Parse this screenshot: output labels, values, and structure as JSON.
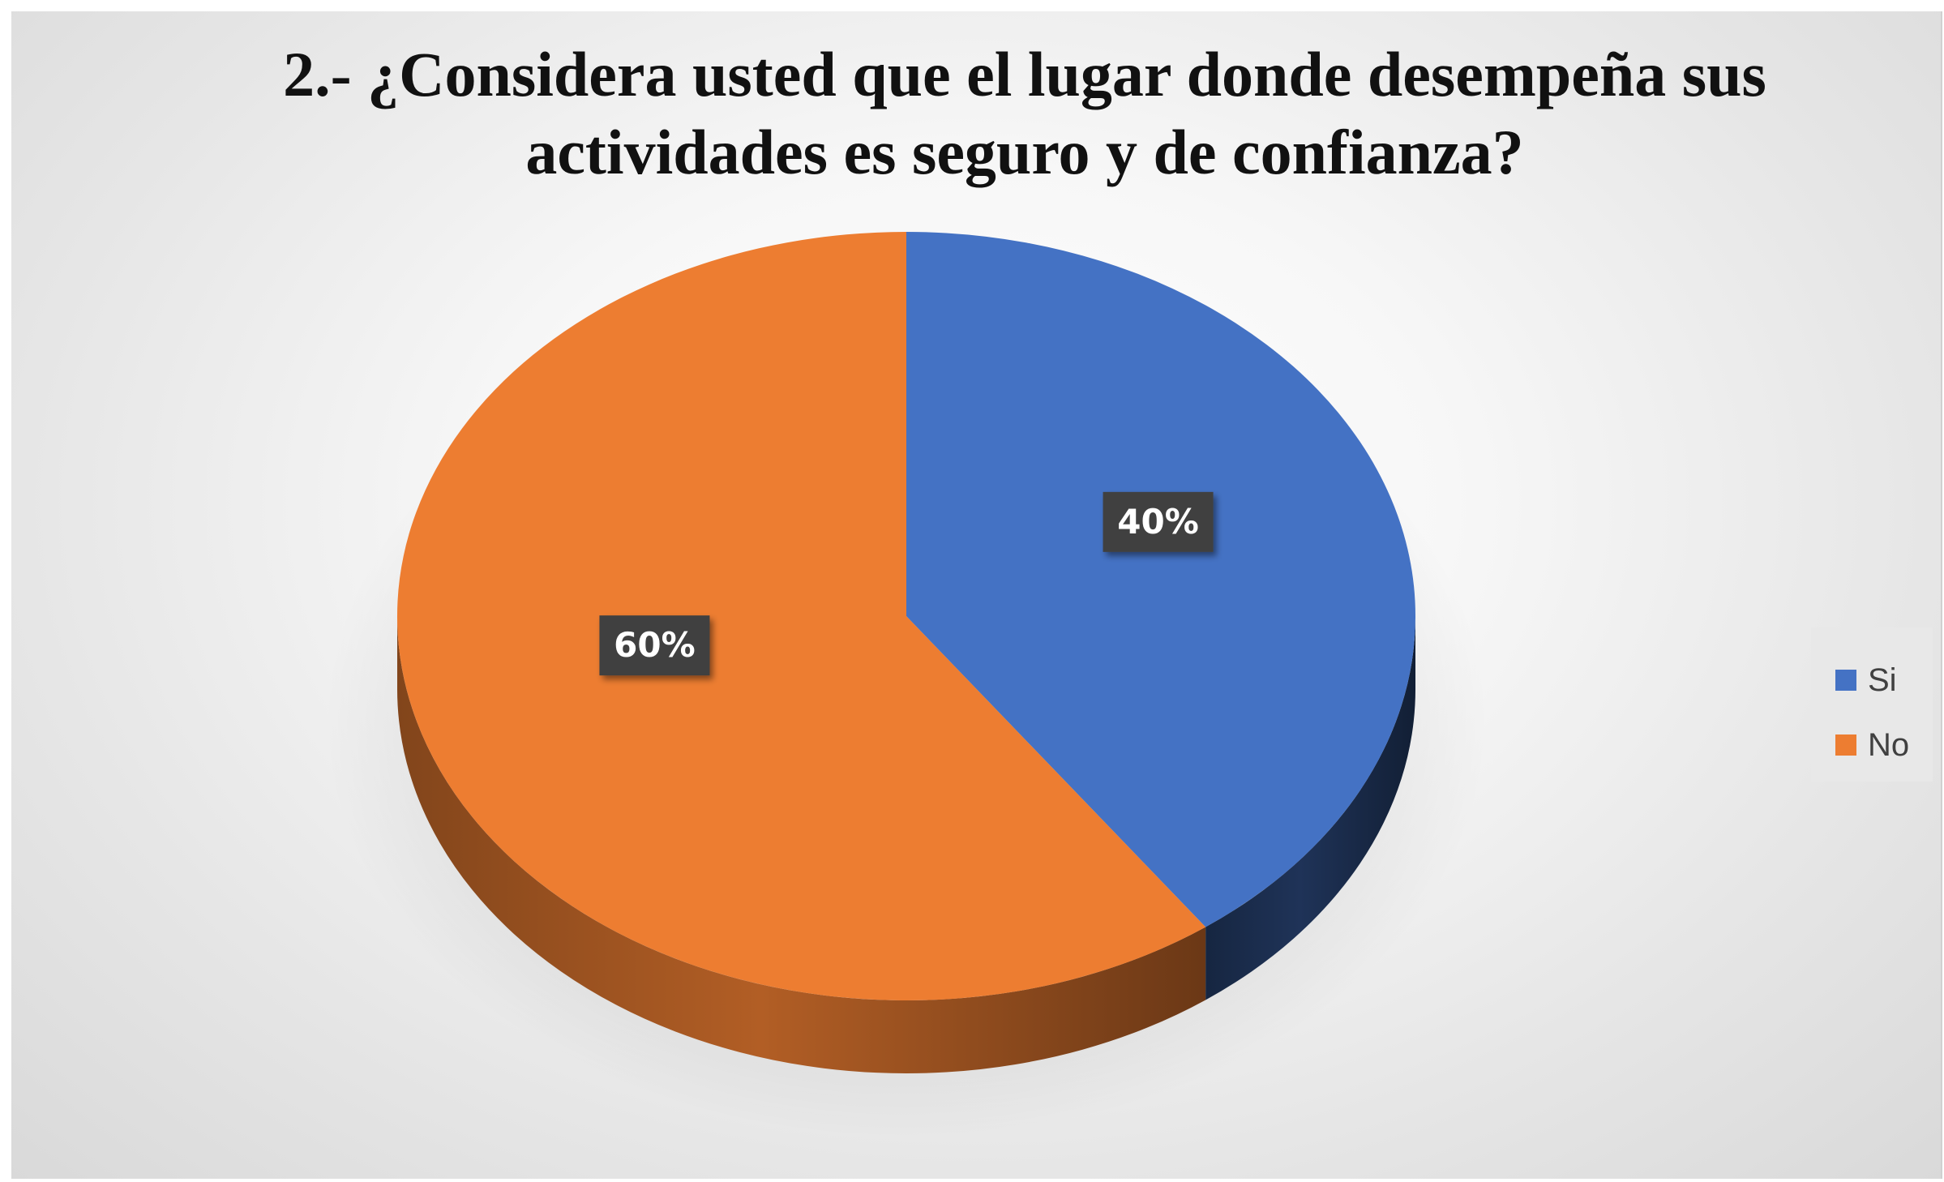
{
  "chart_data": {
    "type": "pie",
    "title": "2.- ¿Considera usted que el lugar donde desempeña sus actividades es seguro y de confianza?",
    "categories": [
      "Si",
      "No"
    ],
    "values": [
      40,
      60
    ],
    "data_labels": [
      "40%",
      "60%"
    ],
    "colors": [
      "#4472C4",
      "#ED7D31"
    ],
    "style": "3d-pie",
    "legend_placement": "right"
  }
}
